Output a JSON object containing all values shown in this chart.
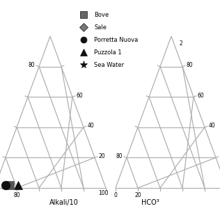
{
  "background_color": "#ffffff",
  "grid_color": "#b0b0b0",
  "left_label": "Alkali/10",
  "right_label": "HCO³",
  "legend": [
    {
      "label": "Bove",
      "marker": "s",
      "color": "#666666"
    },
    {
      "label": "Sale",
      "marker": "D",
      "color": "#777777"
    },
    {
      "label": "Porretta Nuova",
      "marker": "o",
      "color": "#111111"
    },
    {
      "label": "Puzzola 1",
      "marker": "^",
      "color": "#111111"
    },
    {
      "label": "Sea Water",
      "marker": "*",
      "color": "#111111"
    }
  ],
  "left_data": [
    {
      "name": "Puzzola 1",
      "marker": "^",
      "color": "#111111",
      "ms": 9,
      "alkali": 78,
      "second": 2
    },
    {
      "name": "Bove",
      "marker": "s",
      "color": "#555555",
      "ms": 8,
      "alkali": 86,
      "second": 2
    },
    {
      "name": "Porretta Nuova",
      "marker": "o",
      "color": "#111111",
      "ms": 9,
      "alkali": 89,
      "second": 2
    }
  ]
}
